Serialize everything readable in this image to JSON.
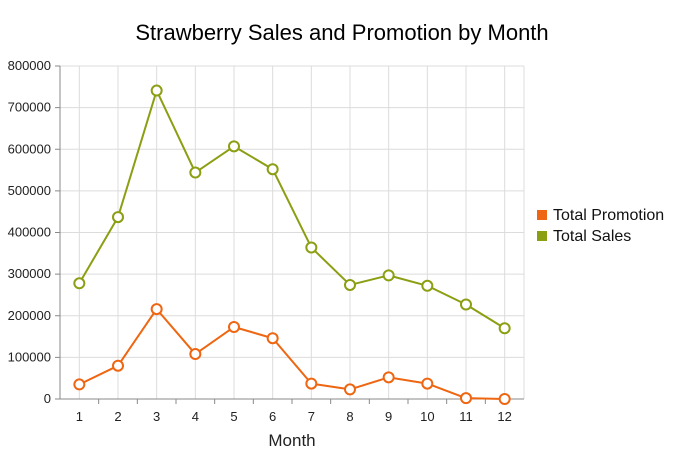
{
  "chart_data": {
    "type": "line",
    "title": "Strawberry Sales and Promotion by Month",
    "xlabel": "Month",
    "ylabel": "",
    "categories": [
      "1",
      "2",
      "3",
      "4",
      "5",
      "6",
      "7",
      "8",
      "9",
      "10",
      "11",
      "12"
    ],
    "ylim": [
      0,
      800000
    ],
    "yticks": [
      0,
      100000,
      200000,
      300000,
      400000,
      500000,
      600000,
      700000,
      800000
    ],
    "grid": true,
    "legend_position": "right",
    "series": [
      {
        "name": "Total Promotion",
        "color": "#ee6611",
        "values": [
          35000,
          80000,
          216000,
          108000,
          173000,
          146000,
          37000,
          23000,
          52000,
          37000,
          2000,
          0
        ]
      },
      {
        "name": "Total Sales",
        "color": "#8c9e12",
        "values": [
          278000,
          437000,
          741000,
          544000,
          607000,
          552000,
          364000,
          274000,
          297000,
          272000,
          227000,
          170000
        ]
      }
    ]
  }
}
